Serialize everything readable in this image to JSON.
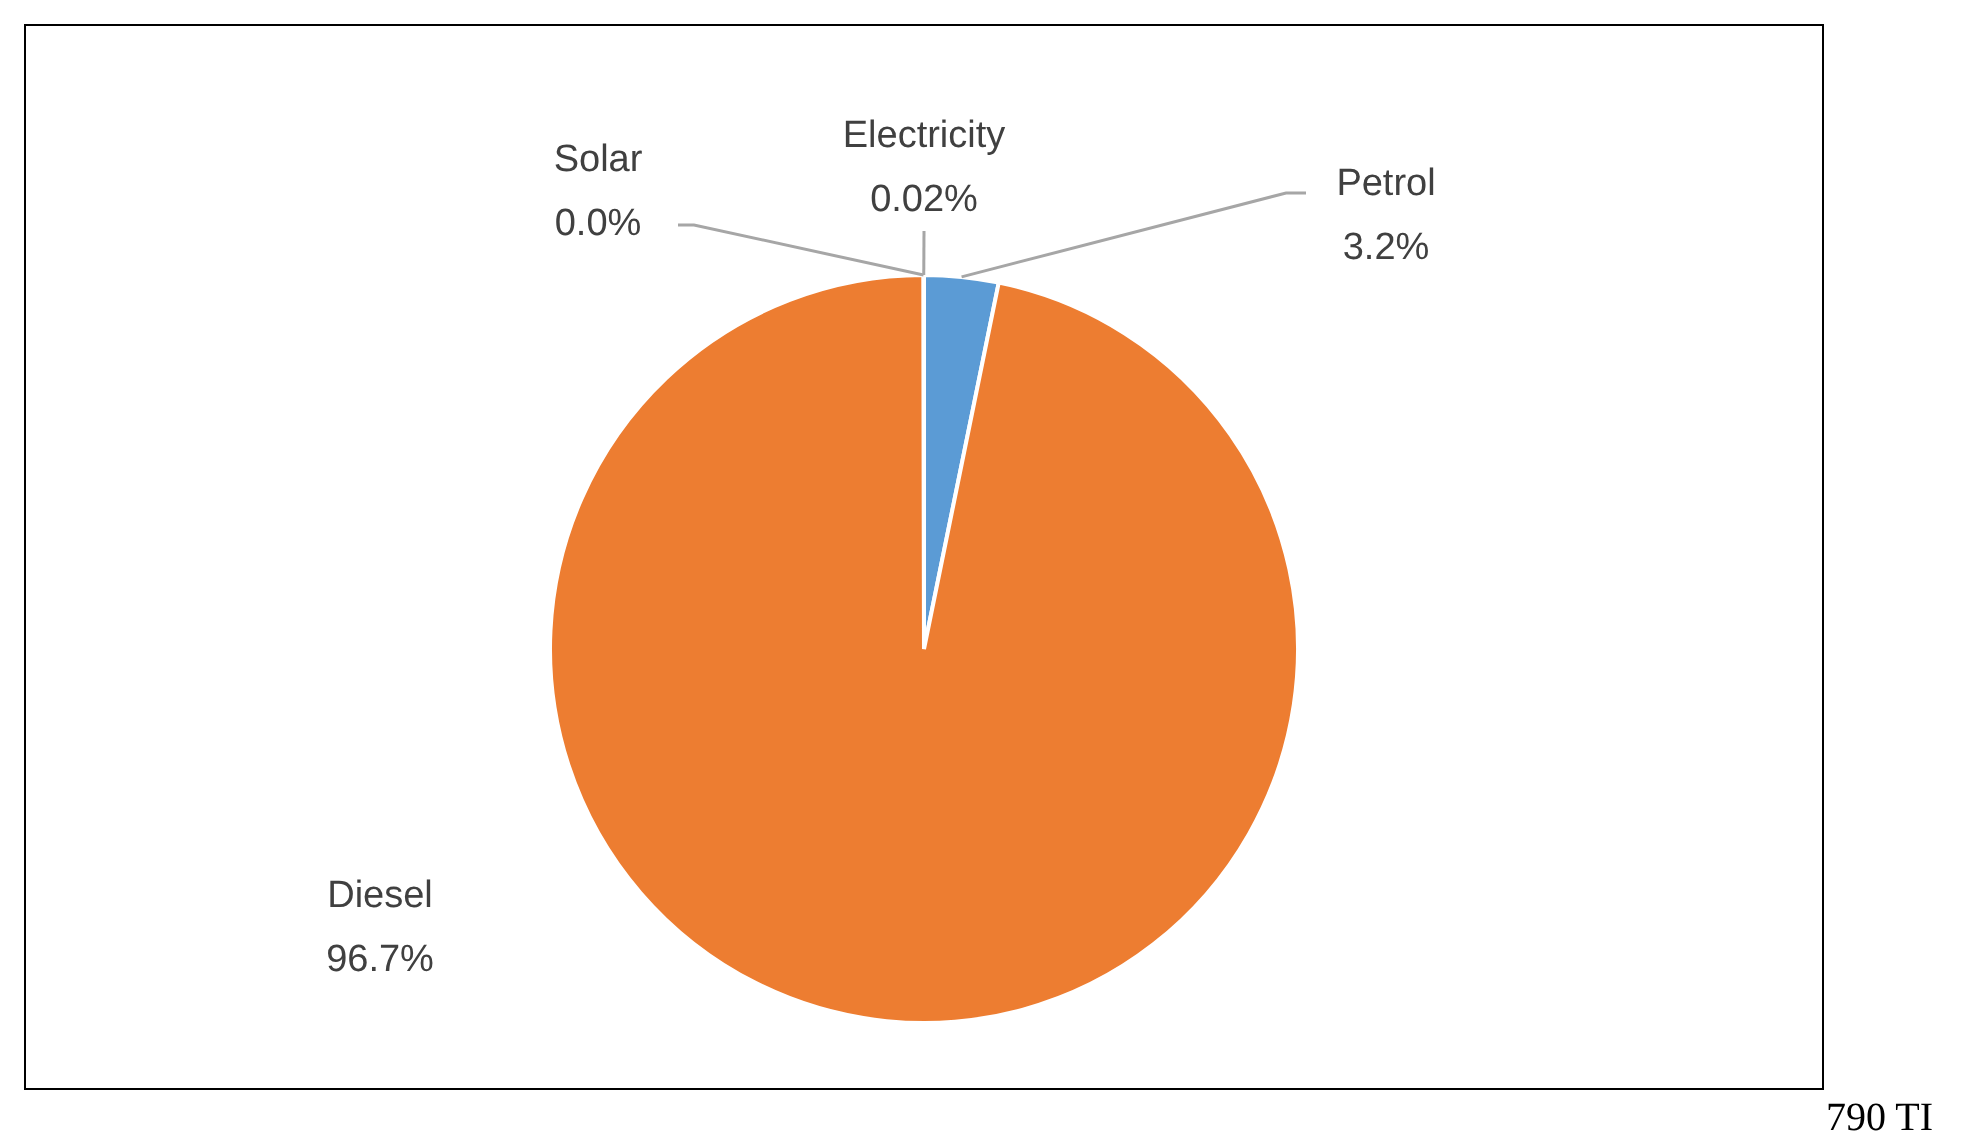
{
  "chart_data": {
    "type": "pie",
    "categories": [
      "Petrol",
      "Diesel",
      "Solar",
      "Electricity"
    ],
    "values": [
      3.2,
      96.7,
      0.0,
      0.02
    ],
    "value_labels": [
      "3.2%",
      "96.7%",
      "0.0%",
      "0.02%"
    ],
    "colors": [
      "#5b9bd5",
      "#ed7d31",
      "#a5a5a5",
      "#ffc000"
    ],
    "legend": false,
    "annotations": [
      "790 TI"
    ]
  }
}
